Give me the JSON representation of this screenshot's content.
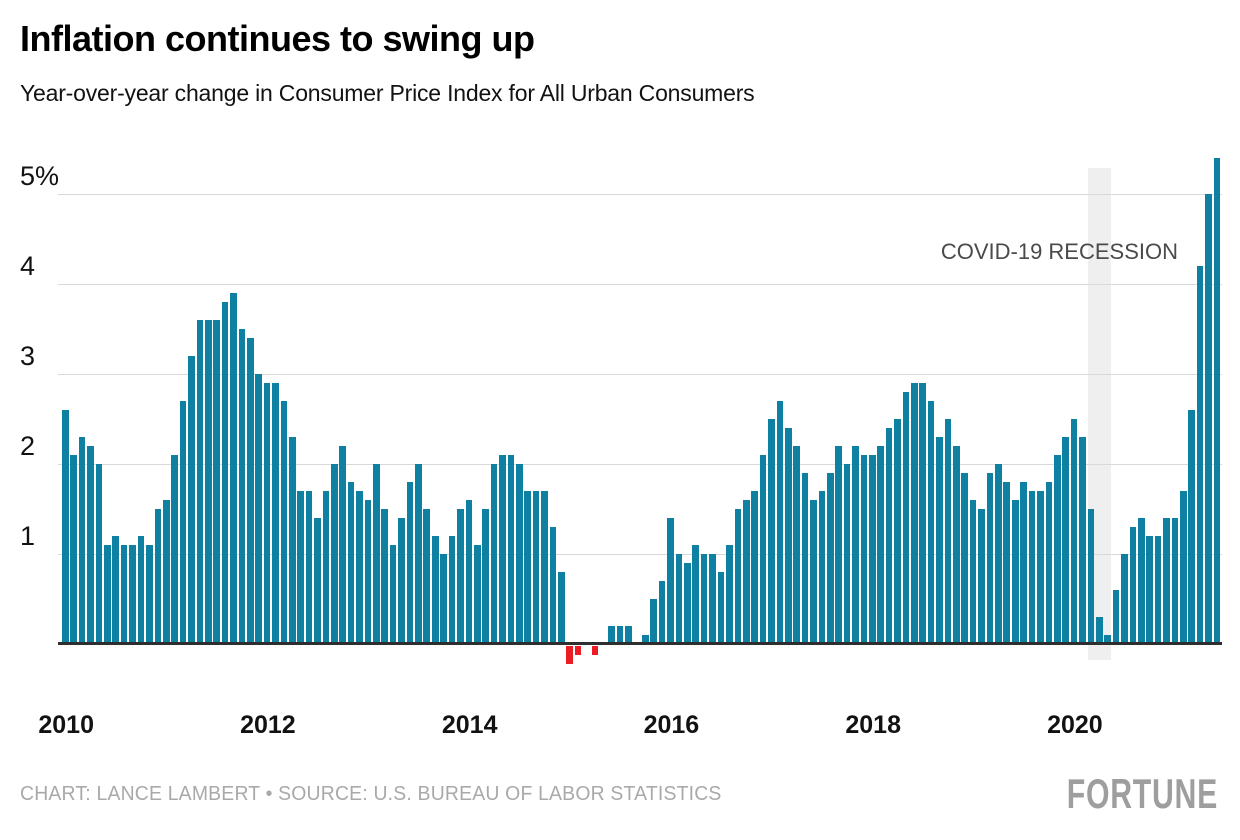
{
  "header": {
    "title": "Inflation continues to swing up",
    "subtitle": "Year-over-year change in Consumer Price Index for All Urban Consumers"
  },
  "annotation": {
    "label": "COVID-19 RECESSION"
  },
  "footer": {
    "credit": "CHART: LANCE LAMBERT • SOURCE: U.S. BUREAU OF LABOR STATISTICS",
    "brand": "FORTUNE"
  },
  "colors": {
    "bar_positive": "#0e80a2",
    "bar_negative": "#ec1c24",
    "gridline": "#d9d9d9",
    "baseline": "#2e2e2e",
    "recession_band": "#efefef",
    "annotation_text": "#4a4a4a",
    "credit_text": "#a9a9a9",
    "brand_text": "#9e9e9e"
  },
  "chart_data": {
    "type": "bar",
    "title": "Inflation continues to swing up",
    "subtitle": "Year-over-year change in Consumer Price Index for All Urban Consumers",
    "unit": "percent",
    "frequency": "monthly",
    "start_month": "2010-01",
    "end_month": "2021-06",
    "grid": "horizontal",
    "ylim": [
      -0.5,
      5.5
    ],
    "y_ticks": [
      {
        "value": 1,
        "label": "1"
      },
      {
        "value": 2,
        "label": "2"
      },
      {
        "value": 3,
        "label": "3"
      },
      {
        "value": 4,
        "label": "4"
      },
      {
        "value": 5,
        "label": "5%"
      }
    ],
    "x_ticks": [
      {
        "year": 2010,
        "label": "2010"
      },
      {
        "year": 2012,
        "label": "2012"
      },
      {
        "year": 2014,
        "label": "2014"
      },
      {
        "year": 2016,
        "label": "2016"
      },
      {
        "year": 2018,
        "label": "2018"
      },
      {
        "year": 2020,
        "label": "2020"
      }
    ],
    "recession_band": {
      "from": "2020-03",
      "to": "2020-05",
      "label": "COVID-19 RECESSION"
    },
    "series": [
      {
        "name": "YoY change in CPI-U (%)",
        "values": [
          2.6,
          2.1,
          2.3,
          2.2,
          2.0,
          1.1,
          1.2,
          1.1,
          1.1,
          1.2,
          1.1,
          1.5,
          1.6,
          2.1,
          2.7,
          3.2,
          3.6,
          3.6,
          3.6,
          3.8,
          3.9,
          3.5,
          3.4,
          3.0,
          2.9,
          2.9,
          2.7,
          2.3,
          1.7,
          1.7,
          1.4,
          1.7,
          2.0,
          2.2,
          1.8,
          1.7,
          1.6,
          2.0,
          1.5,
          1.1,
          1.4,
          1.8,
          2.0,
          1.5,
          1.2,
          1.0,
          1.2,
          1.5,
          1.6,
          1.1,
          1.5,
          2.0,
          2.1,
          2.1,
          2.0,
          1.7,
          1.7,
          1.7,
          1.3,
          0.8,
          -0.2,
          -0.1,
          0.0,
          -0.1,
          0.0,
          0.2,
          0.2,
          0.2,
          0.0,
          0.1,
          0.5,
          0.7,
          1.4,
          1.0,
          0.9,
          1.1,
          1.0,
          1.0,
          0.8,
          1.1,
          1.5,
          1.6,
          1.7,
          2.1,
          2.5,
          2.7,
          2.4,
          2.2,
          1.9,
          1.6,
          1.7,
          1.9,
          2.2,
          2.0,
          2.2,
          2.1,
          2.1,
          2.2,
          2.4,
          2.5,
          2.8,
          2.9,
          2.9,
          2.7,
          2.3,
          2.5,
          2.2,
          1.9,
          1.6,
          1.5,
          1.9,
          2.0,
          1.8,
          1.6,
          1.8,
          1.7,
          1.7,
          1.8,
          2.1,
          2.3,
          2.5,
          2.3,
          1.5,
          0.3,
          0.1,
          0.6,
          1.0,
          1.3,
          1.4,
          1.2,
          1.2,
          1.4,
          1.4,
          1.7,
          2.6,
          4.2,
          5.0,
          5.4
        ]
      }
    ]
  }
}
